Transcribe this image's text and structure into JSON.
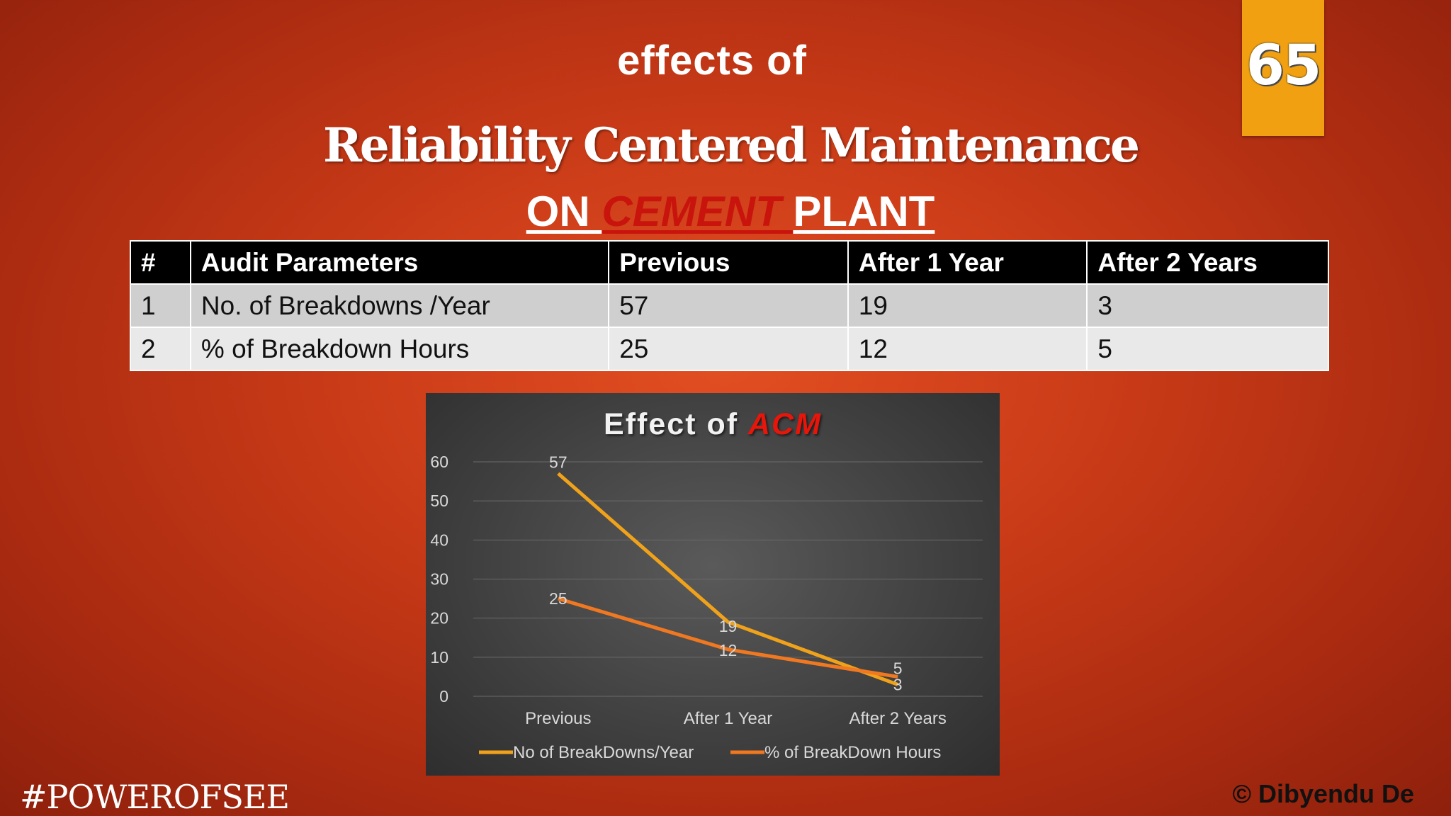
{
  "slide_number": "65",
  "title": {
    "line1": "effects of",
    "line2": "Reliability Centered Maintenance",
    "line3_pre": "ON ",
    "line3_em": "CEMENT ",
    "line3_post": "PLANT"
  },
  "table": {
    "headers": [
      "#",
      "Audit Parameters",
      "Previous",
      "After 1 Year",
      "After 2 Years"
    ],
    "rows": [
      [
        "1",
        "No. of Breakdowns /Year",
        "57",
        "19",
        "3"
      ],
      [
        "2",
        "% of Breakdown Hours",
        "25",
        "12",
        "5"
      ]
    ]
  },
  "chart_title_pre": "Effect of ",
  "chart_title_em": "ACM",
  "chart_data": {
    "type": "line",
    "title": "Effect of ACM",
    "categories": [
      "Previous",
      "After 1 Year",
      "After 2 Years"
    ],
    "series": [
      {
        "name": "No of BreakDowns/Year",
        "values": [
          57,
          19,
          3
        ],
        "color": "#f0a21a"
      },
      {
        "name": "% of BreakDown Hours",
        "values": [
          25,
          12,
          5
        ],
        "color": "#f07820"
      }
    ],
    "yticks": [
      "0",
      "10",
      "20",
      "30",
      "40",
      "50",
      "60"
    ],
    "ylim": [
      0,
      60
    ],
    "grid": true,
    "legend": "bottom"
  },
  "footer": {
    "hashtag": "#POWEROFSEE",
    "copyright": "© Dibyendu De"
  }
}
